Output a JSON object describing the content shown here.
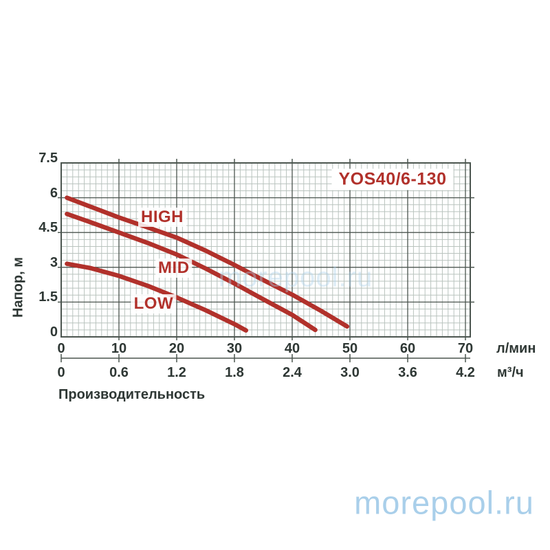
{
  "watermark": {
    "text": "morepool.ru",
    "color": "#a9cfea"
  },
  "chart_data": {
    "type": "line",
    "title": "YOS40/6-130",
    "ylabel": "Напор, м",
    "xlabel": "Производительность",
    "x_unit_primary": "л/мин",
    "x_unit_secondary": "м³/ч",
    "y_ticks": [
      "7.5",
      "6",
      "4.5",
      "3",
      "1.5",
      "0"
    ],
    "x_ticks_lmin": [
      "0",
      "10",
      "20",
      "30",
      "40",
      "50",
      "60",
      "70"
    ],
    "x_ticks_m3h": [
      "0",
      "0.6",
      "1.2",
      "1.8",
      "2.4",
      "3.0",
      "3.6",
      "4.2"
    ],
    "ylim": [
      0,
      7.5
    ],
    "xlim_lmin": [
      0,
      70.8
    ],
    "grid": {
      "minor_x_step_lmin": 1,
      "minor_y_step_m": 0.3,
      "major_x_step_lmin": 10,
      "major_y_step_m": 1.5,
      "grid_on": true
    },
    "legend_position": "labels-on-curves",
    "colors": {
      "curve": "#b1312b",
      "grid_minor": "#b9c3be",
      "grid_major": "#4b554f",
      "text": "#2e3734"
    },
    "series": [
      {
        "name": "HIGH",
        "points": [
          [
            1,
            6.0
          ],
          [
            5,
            5.62
          ],
          [
            10,
            5.15
          ],
          [
            15,
            4.72
          ],
          [
            20,
            4.28
          ],
          [
            25,
            3.72
          ],
          [
            30,
            3.1
          ],
          [
            35,
            2.45
          ],
          [
            40,
            1.82
          ],
          [
            45,
            1.12
          ],
          [
            49.5,
            0.45
          ]
        ],
        "label_at": [
          17.5,
          5.15
        ]
      },
      {
        "name": "MID",
        "points": [
          [
            1,
            5.3
          ],
          [
            5,
            4.95
          ],
          [
            10,
            4.5
          ],
          [
            15,
            4.05
          ],
          [
            20,
            3.55
          ],
          [
            25,
            2.95
          ],
          [
            30,
            2.3
          ],
          [
            35,
            1.62
          ],
          [
            40,
            0.95
          ],
          [
            44,
            0.3
          ]
        ],
        "label_at": [
          19.5,
          2.95
        ]
      },
      {
        "name": "LOW",
        "points": [
          [
            1,
            3.15
          ],
          [
            5,
            2.97
          ],
          [
            10,
            2.63
          ],
          [
            15,
            2.2
          ],
          [
            20,
            1.7
          ],
          [
            25,
            1.15
          ],
          [
            30,
            0.55
          ],
          [
            32,
            0.28
          ]
        ],
        "label_at": [
          16,
          1.42
        ]
      }
    ]
  }
}
